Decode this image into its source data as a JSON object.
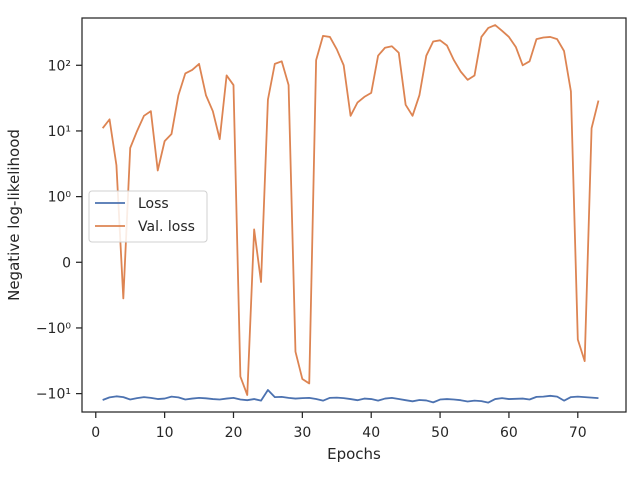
{
  "chart_data": {
    "type": "line",
    "xlabel": "Epochs",
    "ylabel": "Negative log-likelihood",
    "yscale": "symlog",
    "xlim": [
      -2,
      77
    ],
    "xticks": [
      0,
      10,
      20,
      30,
      40,
      50,
      60,
      70
    ],
    "xtick_labels": [
      "0",
      "10",
      "20",
      "30",
      "40",
      "50",
      "60",
      "70"
    ],
    "yticks": [
      -10,
      -1,
      0,
      1,
      10,
      100
    ],
    "ytick_labels": [
      "−10¹",
      "−10⁰",
      "0",
      "10⁰",
      "10¹",
      "10²"
    ],
    "grid": false,
    "legend_position": "center-left",
    "series": [
      {
        "name": "Loss",
        "color": "#4c72b0",
        "x": [
          1,
          2,
          3,
          4,
          5,
          6,
          7,
          8,
          9,
          10,
          11,
          12,
          13,
          14,
          15,
          16,
          17,
          18,
          19,
          20,
          21,
          22,
          23,
          24,
          25,
          26,
          27,
          28,
          29,
          30,
          31,
          32,
          33,
          34,
          35,
          36,
          37,
          38,
          39,
          40,
          41,
          42,
          43,
          44,
          45,
          46,
          47,
          48,
          49,
          50,
          51,
          52,
          53,
          54,
          55,
          56,
          57,
          58,
          59,
          60,
          61,
          62,
          63,
          64,
          65,
          66,
          67,
          68,
          69,
          70,
          71,
          72,
          73
        ],
        "values": [
          -12.5,
          -11.4,
          -11.0,
          -11.3,
          -12.3,
          -11.7,
          -11.3,
          -11.6,
          -12.1,
          -11.9,
          -11.1,
          -11.4,
          -12.3,
          -11.9,
          -11.6,
          -11.8,
          -12.1,
          -12.3,
          -11.9,
          -11.6,
          -12.3,
          -12.6,
          -12.1,
          -12.8,
          -8.8,
          -11.3,
          -11.2,
          -11.6,
          -11.9,
          -11.7,
          -11.6,
          -12.1,
          -12.8,
          -11.6,
          -11.5,
          -11.7,
          -12.1,
          -12.6,
          -11.9,
          -12.1,
          -12.8,
          -11.9,
          -11.6,
          -12.1,
          -12.6,
          -13.1,
          -12.5,
          -12.7,
          -13.6,
          -12.3,
          -12.1,
          -12.3,
          -12.6,
          -13.2,
          -12.8,
          -13.0,
          -13.7,
          -12.1,
          -11.7,
          -12.1,
          -12.0,
          -11.9,
          -12.3,
          -11.2,
          -11.1,
          -10.8,
          -11.1,
          -12.8,
          -11.3,
          -11.1,
          -11.3,
          -11.5,
          -11.7
        ]
      },
      {
        "name": "Val. loss",
        "color": "#dd8452",
        "x": [
          1,
          2,
          3,
          4,
          5,
          6,
          7,
          8,
          9,
          10,
          11,
          12,
          13,
          14,
          15,
          16,
          17,
          18,
          19,
          20,
          21,
          22,
          23,
          24,
          25,
          26,
          27,
          28,
          29,
          30,
          31,
          32,
          33,
          34,
          35,
          36,
          37,
          38,
          39,
          40,
          41,
          42,
          43,
          44,
          45,
          46,
          47,
          48,
          49,
          50,
          51,
          52,
          53,
          54,
          55,
          56,
          57,
          58,
          59,
          60,
          61,
          62,
          63,
          64,
          65,
          66,
          67,
          68,
          69,
          70,
          71,
          72,
          73
        ],
        "values": [
          11,
          15,
          3,
          -0.55,
          5.5,
          10,
          17,
          20,
          2.5,
          7,
          9,
          35,
          75,
          85,
          105,
          35,
          20,
          7.5,
          70,
          50,
          -5.5,
          -10.5,
          0.5,
          -0.3,
          30,
          105,
          115,
          50,
          -2.3,
          -6,
          -7,
          120,
          280,
          270,
          175,
          100,
          17,
          27,
          33,
          38,
          140,
          185,
          195,
          155,
          25,
          17,
          35,
          140,
          230,
          240,
          200,
          120,
          80,
          60,
          70,
          270,
          370,
          410,
          335,
          270,
          190,
          100,
          115,
          250,
          265,
          270,
          250,
          165,
          40,
          -1.5,
          -3.2,
          11,
          29
        ]
      }
    ]
  }
}
